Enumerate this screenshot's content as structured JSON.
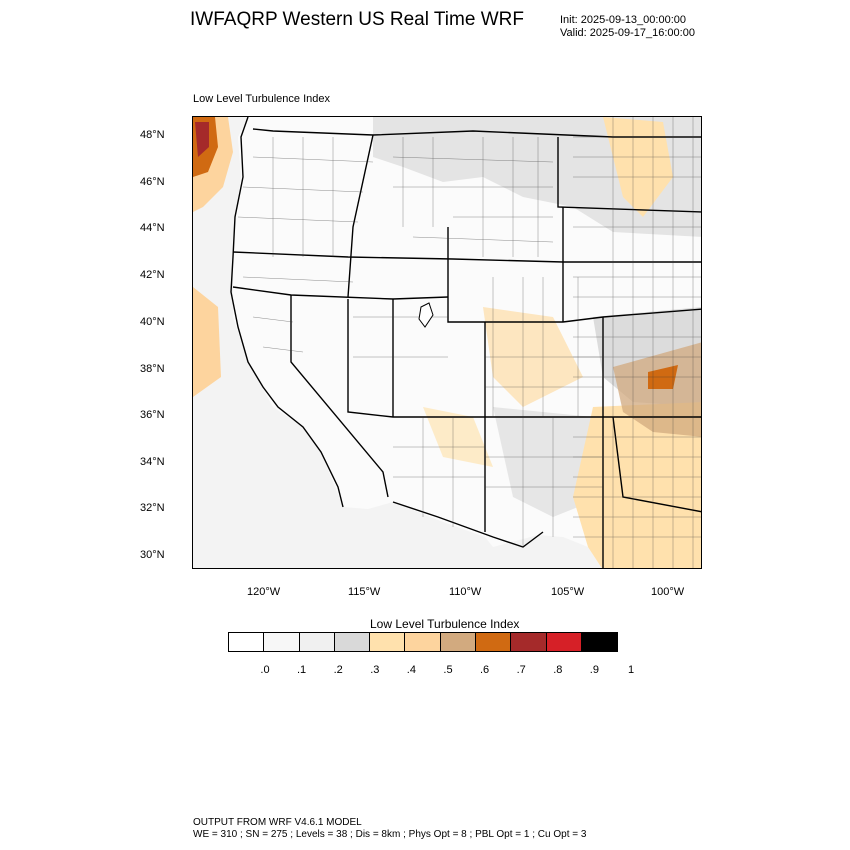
{
  "header": {
    "title": "IWFAQRP Western US Real Time WRF",
    "init_line": "Init: 2025-09-13_00:00:00",
    "valid_line": "Valid: 2025-09-17_16:00:00"
  },
  "map": {
    "field_label": "Low Level Turbulence Index",
    "lat_labels": [
      "48°N",
      "46°N",
      "44°N",
      "42°N",
      "40°N",
      "38°N",
      "36°N",
      "34°N",
      "32°N",
      "30°N"
    ],
    "lon_labels": [
      "120°W",
      "115°W",
      "110°W",
      "105°W",
      "100°W"
    ],
    "colors": {
      "background": "#f7f7f7",
      "low": "#f0f0f0",
      "mid": "#d9d9d9",
      "light_orange": "#ffe1ad",
      "orange": "#fdd49e",
      "tan": "#d2aa7f",
      "dark_orange": "#d06a12",
      "red_brown": "#a52a2a",
      "borders": "#000000"
    }
  },
  "colorbar": {
    "title": "Low Level Turbulence Index",
    "colors": [
      "#ffffff",
      "#f7f7f7",
      "#f0f0f0",
      "#d9d9d9",
      "#ffe1ad",
      "#fdd49e",
      "#d2aa7f",
      "#d06a12",
      "#a52a2a",
      "#d62027",
      "#000000"
    ],
    "ticks": [
      ".0",
      ".1",
      ".2",
      ".3",
      ".4",
      ".5",
      ".6",
      ".7",
      ".8",
      ".9",
      "1"
    ]
  },
  "footer": {
    "line1": "OUTPUT FROM WRF V4.6.1 MODEL",
    "line2": "WE = 310 ; SN = 275 ; Levels = 38 ; Dis = 8km ; Phys Opt = 8 ; PBL Opt = 1 ; Cu Opt = 3"
  }
}
